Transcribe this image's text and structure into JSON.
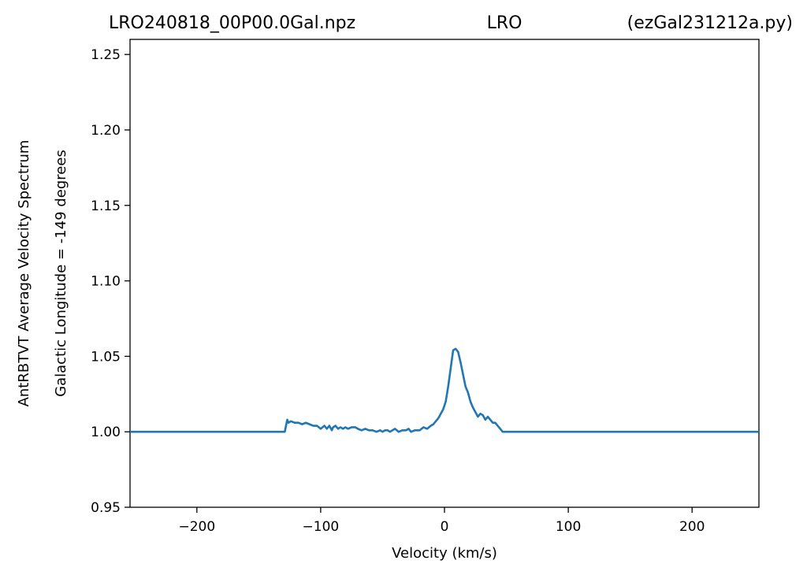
{
  "chart_data": {
    "type": "line",
    "title_parts": [
      "LRO240818_00P00.0Gal.npz",
      "LRO",
      "(ezGal231212a.py)"
    ],
    "xlabel": "Velocity (km/s)",
    "ylabel_outer": "AntRBTVT Average Velocity Spectrum",
    "ylabel_inner": "Galactic Longitude = -149 degrees",
    "xlim": [
      -254,
      254
    ],
    "ylim": [
      0.95,
      1.26
    ],
    "xticks": [
      -200,
      -100,
      0,
      100,
      200
    ],
    "xtick_labels": [
      "−200",
      "−100",
      "0",
      "100",
      "200"
    ],
    "yticks": [
      0.95,
      1.0,
      1.05,
      1.1,
      1.15,
      1.2,
      1.25
    ],
    "ytick_labels": [
      "0.95",
      "1.00",
      "1.05",
      "1.10",
      "1.15",
      "1.20",
      "1.25"
    ],
    "grid": false,
    "colors": {
      "line": "#1f77b4"
    },
    "series": [
      {
        "x": [
          -254,
          -129,
          -127,
          -126,
          -124,
          -121,
          -118,
          -115,
          -112,
          -109,
          -106,
          -103,
          -100,
          -97,
          -95,
          -93,
          -91,
          -90,
          -88,
          -86,
          -84,
          -82,
          -80,
          -78,
          -75,
          -72,
          -70,
          -67,
          -64,
          -61,
          -58,
          -55,
          -52,
          -50,
          -48,
          -46,
          -44,
          -42,
          -40,
          -37,
          -34,
          -31,
          -29,
          -27,
          -24,
          -22,
          -20,
          -17,
          -14,
          -11,
          -9,
          -7,
          -5,
          -3,
          -1,
          1,
          3,
          5,
          7,
          9,
          11,
          13,
          15,
          17,
          19,
          21,
          23,
          25,
          27,
          29,
          31,
          33,
          35,
          37,
          39,
          41,
          43,
          45,
          47,
          49,
          51,
          53,
          254
        ],
        "y": [
          1.0,
          1.0,
          1.008,
          1.006,
          1.007,
          1.006,
          1.006,
          1.005,
          1.006,
          1.005,
          1.004,
          1.004,
          1.002,
          1.004,
          1.002,
          1.004,
          1.001,
          1.003,
          1.004,
          1.002,
          1.003,
          1.002,
          1.003,
          1.002,
          1.003,
          1.003,
          1.002,
          1.001,
          1.002,
          1.001,
          1.001,
          1.0,
          1.001,
          1.0,
          1.001,
          1.001,
          1.0,
          1.001,
          1.002,
          1.0,
          1.001,
          1.001,
          1.002,
          1.0,
          1.001,
          1.001,
          1.001,
          1.003,
          1.002,
          1.004,
          1.005,
          1.007,
          1.009,
          1.012,
          1.015,
          1.02,
          1.03,
          1.042,
          1.054,
          1.055,
          1.053,
          1.046,
          1.038,
          1.03,
          1.026,
          1.02,
          1.016,
          1.013,
          1.01,
          1.012,
          1.011,
          1.008,
          1.01,
          1.008,
          1.006,
          1.006,
          1.004,
          1.002,
          1.0,
          1.0,
          1.0,
          1.0,
          1.0
        ]
      }
    ]
  }
}
